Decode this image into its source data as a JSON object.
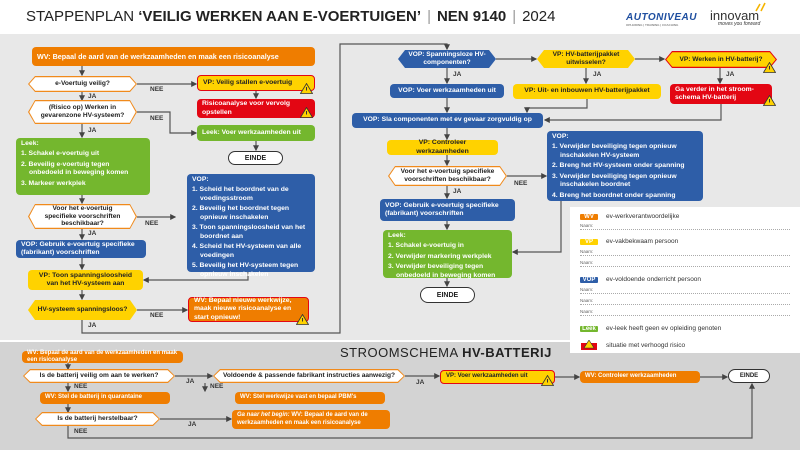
{
  "header": {
    "title_plain": "STAPPENPLAN",
    "title_bold": "‘VEILIG WERKEN AAN E-VOERTUIGEN’",
    "norm": "NEN 9140",
    "year": "2024",
    "logo1": "AUTONIVEAU",
    "logo1_sub": "OPLEIDING | TRAINING | COACHING",
    "logo2": "innovam",
    "logo2_sub": "moves you forward"
  },
  "colors": {
    "wv": "#ef7d00",
    "vp": "#ffd200",
    "vop": "#2e5ea8",
    "leek": "#74b72e",
    "risk": "#e30613",
    "bg": "#e8e8e8"
  },
  "flow": {
    "start": "WV: Bepaal de aard van de werkzaamheden en maak een risicoanalyse",
    "q_safe": "e-Voertuig veilig?",
    "vp_stallen": "VP: Veilig stallen e-voertuig",
    "risico": "Risicoanalyse voor vervolg opstellen",
    "q_zone": "(Risico op) Werken in gevarenzone HV-systeem?",
    "leek_uit": "Leek: Voer werkzaamheden uit",
    "einde": "EINDE",
    "leek_list": {
      "title": "Leek:",
      "items": [
        "1. Schakel e-voertuig uit",
        "2. Beveilig e-voertuig tegen onbedoeld in beweging komen",
        "3. Markeer werkplek"
      ]
    },
    "q_spec": "Voor het e-voertuig specifieke voorschriften beschikbaar?",
    "vop_list": {
      "title": "VOP:",
      "items": [
        "1. Scheid het boordnet van de voedingsstroom",
        "2. Beveilig het boordnet tegen opnieuw inschakelen",
        "3. Toon spanningsloosheid van het boordnet aan",
        "4. Scheid het HV-systeem van alle voedingen",
        "5. Beveilig het HV-systeem tegen opnieuw inschakelen"
      ]
    },
    "vop_gebruik": "VOP: Gebruik e-voertuig specifieke (fabrikant) voorschriften",
    "vp_toon": "VP: Toon spanningsloosheid van het HV-systeem aan",
    "q_spanningsloos": "HV-systeem spanningsloos?",
    "wv_nieuw": "WV: Bepaal nieuwe werkwijze, maak nieuwe risicoanalyse en start opnieuw!",
    "q_comp": "VOP: Spanningsloze HV-componenten?",
    "q_pakket": "VP: HV-batterijpakket uitwisselen?",
    "q_batterij": "VP: Werken in HV-batterij?",
    "vop_uit": "VOP: Voer werkzaamheden uit",
    "vp_inbouw": "VP: Uit- en inbouwen HV-batterijpakket",
    "ga_verder": "Ga verder in het stroom-schema HV-batterij",
    "vop_sla": "VOP: Sla componenten met ev gevaar zorgvuldig op",
    "vp_controleer": "VP: Controleer werkzaamheden",
    "q_spec2": "Voor het e-voertuig specifieke voorschriften beschikbaar?",
    "vop_list2": {
      "title": "VOP:",
      "items": [
        "1. Verwijder beveiliging tegen opnieuw inschakelen HV-systeem",
        "2. Breng het HV-systeem onder spanning",
        "3. Verwijder beveiliging tegen opnieuw inschakelen boordnet",
        "4. Breng het boordnet onder spanning"
      ]
    },
    "vop_gebruik2": "VOP: Gebruik e-voertuig specifieke (fabrikant) voorschriften",
    "leek_list2": {
      "title": "Leek:",
      "items": [
        "1. Schakel e-voertuig in",
        "2. Verwijder markering werkplek",
        "3. Verwijder beveiliging tegen onbedoeld in beweging komen"
      ]
    },
    "ja": "JA",
    "nee": "NEE"
  },
  "legend": {
    "wv": {
      "tag": "WV",
      "text": "ev-werkverantwoordelijke"
    },
    "vp": {
      "tag": "VP",
      "text": "ev-vakbekwaam persoon"
    },
    "vop": {
      "tag": "VOP",
      "text": "ev-voldoende onderricht persoon"
    },
    "leek": {
      "tag": "Leek",
      "text": "ev-leek heeft geen ev opleiding genoten"
    },
    "risk": {
      "text": "situatie met verhoogd risico"
    },
    "naam": "Naam:"
  },
  "battery": {
    "title_plain": "STROOMSCHEMA",
    "title_bold": "HV-BATTERIJ",
    "start": "WV: Bepaal de aard van de werkzaamheden en maak een risicoanalyse",
    "q_veilig": "Is de batterij veilig om aan te werken?",
    "q_instructies": "Voldoende & passende fabrikant instructies aanwezig?",
    "vp_uit": "VP: Voer werkzaamheden uit",
    "wv_controleer": "WV: Controleer werkzaamheden",
    "einde": "EINDE",
    "quarantaine": "WV: Stel de batterij in quarantaine",
    "werkwijze": "WV: Stel werkwijze vast en bepaal PBM's",
    "q_herstel": "Is de batterij herstelbaar?",
    "begin_em": "Ga naar het begin:",
    "begin": "WV: Bepaal de aard van de werkzaamheden en maak een risicoanalyse"
  }
}
